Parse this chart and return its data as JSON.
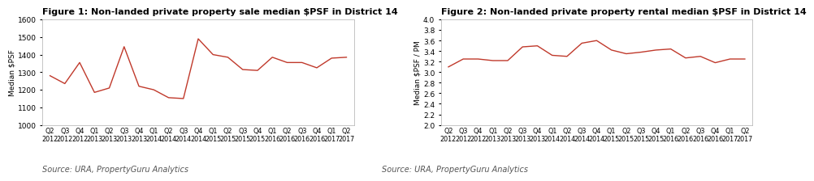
{
  "fig1_title": "Figure 1: Non-landed private property sale median $PSF in District 14",
  "fig2_title": "Figure 2: Non-landed private property rental median $PSF in District 14",
  "source_text": "Source: URA, PropertyGuru Analytics",
  "x_labels_top": [
    "Q2",
    "Q3",
    "Q4",
    "Q1",
    "Q2",
    "Q3",
    "Q4",
    "Q1",
    "Q2",
    "Q3",
    "Q4",
    "Q1",
    "Q2",
    "Q3",
    "Q4",
    "Q1",
    "Q2",
    "Q3",
    "Q4",
    "Q1",
    "Q2"
  ],
  "x_labels_bot": [
    "2012",
    "2012",
    "2012",
    "2013",
    "2013",
    "2013",
    "2013",
    "2014",
    "2014",
    "2014",
    "2014",
    "2015",
    "2015",
    "2015",
    "2015",
    "2016",
    "2016",
    "2016",
    "2016",
    "2017",
    "2017"
  ],
  "sale_values": [
    1280,
    1235,
    1355,
    1185,
    1210,
    1445,
    1220,
    1200,
    1155,
    1150,
    1490,
    1400,
    1385,
    1315,
    1310,
    1385,
    1355,
    1355,
    1325,
    1380,
    1385
  ],
  "rental_values": [
    3.1,
    3.25,
    3.25,
    3.22,
    3.22,
    3.48,
    3.5,
    3.32,
    3.3,
    3.55,
    3.6,
    3.42,
    3.35,
    3.38,
    3.42,
    3.44,
    3.27,
    3.3,
    3.18,
    3.25,
    3.25
  ],
  "sale_ylim": [
    1000,
    1600
  ],
  "sale_yticks": [
    1000,
    1100,
    1200,
    1300,
    1400,
    1500,
    1600
  ],
  "rental_ylim": [
    2.0,
    4.0
  ],
  "rental_yticks": [
    2.0,
    2.2,
    2.4,
    2.6,
    2.8,
    3.0,
    3.2,
    3.4,
    3.6,
    3.8,
    4.0
  ],
  "line_color": "#c0392b",
  "bg_color": "#ffffff",
  "ylabel_sale": "Median $PSF",
  "ylabel_rental": "Median $PSF / PM",
  "title_fontsize": 8.0,
  "source_fontsize": 7.0
}
